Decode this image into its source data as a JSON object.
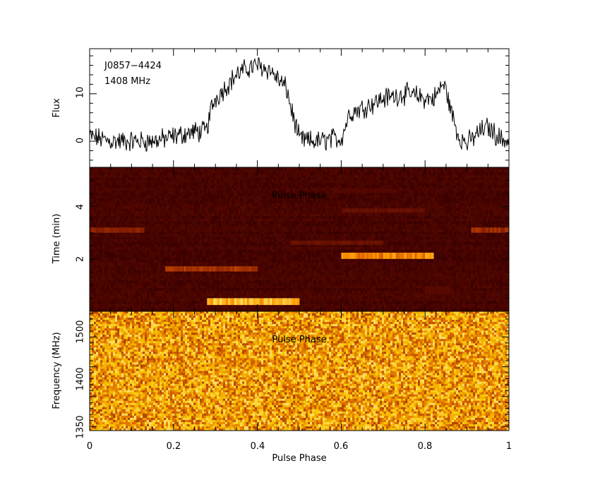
{
  "chart_data": [
    {
      "type": "line",
      "panel": "profile",
      "ylabel": "Flux",
      "annotations": [
        "J0857−4424",
        "1408 MHz"
      ],
      "xlim": [
        0,
        1
      ],
      "ylim": [
        -5.5,
        19.5
      ],
      "yticks": [
        0,
        10
      ],
      "profile_nodes": {
        "x": [
          0,
          0.05,
          0.1,
          0.15,
          0.18,
          0.2,
          0.25,
          0.27,
          0.28,
          0.29,
          0.3,
          0.32,
          0.35,
          0.38,
          0.4,
          0.43,
          0.45,
          0.47,
          0.48,
          0.5,
          0.52,
          0.55,
          0.58,
          0.6,
          0.62,
          0.65,
          0.7,
          0.75,
          0.78,
          0.8,
          0.82,
          0.83,
          0.84,
          0.85,
          0.86,
          0.87,
          0.88,
          0.9,
          0.93,
          0.95,
          0.98,
          1.0
        ],
        "y": [
          1,
          0,
          0,
          0,
          0.5,
          1,
          2,
          2,
          2.5,
          7,
          9,
          11,
          14,
          15.5,
          16,
          15,
          13,
          11,
          7,
          0.5,
          0,
          0,
          0.5,
          0.5,
          6,
          7,
          9,
          10,
          9.5,
          9,
          9,
          10,
          12,
          11,
          7,
          4,
          1,
          -0.5,
          2,
          3,
          0.5,
          0
        ]
      },
      "noise_amplitude": 1.8
    },
    {
      "type": "heatmap",
      "panel": "time-phase",
      "ylabel": "Time (min)",
      "overlay_label": "Pulse Phase",
      "xlim": [
        0,
        1
      ],
      "ylim": [
        0,
        5.5
      ],
      "yticks": [
        2,
        4
      ],
      "colormap": [
        "#3a0000",
        "#5a0a00",
        "#8a2000",
        "#d05000",
        "#ff9a00",
        "#ffe060"
      ],
      "background_level": 0.08,
      "features": [
        {
          "x0": 0.28,
          "x1": 0.5,
          "t": 0.37,
          "dt": 0.26,
          "level": 1.0
        },
        {
          "x0": 0.6,
          "x1": 0.82,
          "t": 2.12,
          "dt": 0.24,
          "level": 0.85
        },
        {
          "x0": 0.18,
          "x1": 0.4,
          "t": 1.62,
          "dt": 0.2,
          "level": 0.55
        },
        {
          "x0": 0.0,
          "x1": 0.13,
          "t": 3.1,
          "dt": 0.2,
          "level": 0.45
        },
        {
          "x0": 0.91,
          "x1": 1.0,
          "t": 3.1,
          "dt": 0.2,
          "level": 0.5
        },
        {
          "x0": 0.48,
          "x1": 0.7,
          "t": 2.62,
          "dt": 0.16,
          "level": 0.3
        },
        {
          "x0": 0.6,
          "x1": 0.8,
          "t": 3.85,
          "dt": 0.16,
          "level": 0.28
        },
        {
          "x0": 0.58,
          "x1": 0.73,
          "t": 4.6,
          "dt": 0.16,
          "level": 0.18
        },
        {
          "x0": 0.8,
          "x1": 0.86,
          "t": 0.8,
          "dt": 0.3,
          "level": 0.2
        }
      ]
    },
    {
      "type": "heatmap",
      "panel": "frequency-phase",
      "ylabel": "Frequency (MHz)",
      "overlay_label": "Pulse Phase",
      "xlabel": "Pulse Phase",
      "xlim": [
        0,
        1
      ],
      "ylim": [
        1343,
        1543
      ],
      "yticks": [
        1350,
        1400,
        1450,
        1500
      ],
      "xticks": [
        0,
        0.2,
        0.4,
        0.6,
        0.8,
        1
      ],
      "xtick_labels": [
        "0",
        "0.2",
        "0.4",
        "0.6",
        "0.8",
        "1"
      ],
      "ytick_labels": [
        "1350",
        "1400",
        "1450",
        "1500"
      ],
      "profile_ytick_labels": [
        "0",
        "10"
      ],
      "time_ytick_labels": [
        "2",
        "4"
      ],
      "colormap": [
        "#b04000",
        "#e07000",
        "#f0a000",
        "#f8c800",
        "#ffe070"
      ],
      "noise": "uniform"
    }
  ]
}
